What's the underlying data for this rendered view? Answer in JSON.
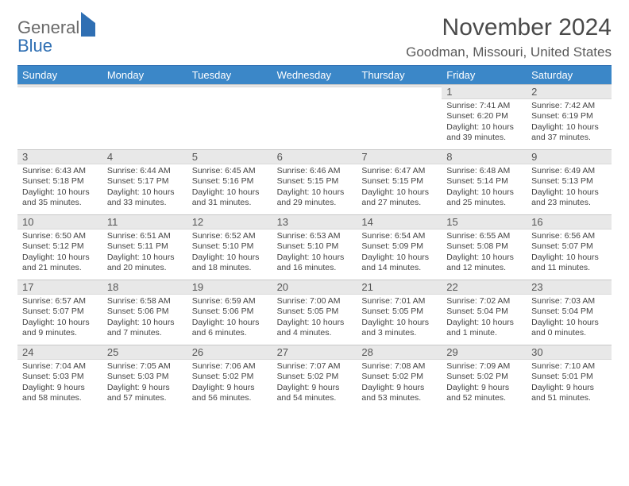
{
  "logo": {
    "top": "General",
    "bottom": "Blue"
  },
  "title": "November 2024",
  "location": "Goodman, Missouri, United States",
  "header_bg": "#3b87c8",
  "band_bg": "#e8e8e8",
  "weekdays": [
    "Sunday",
    "Monday",
    "Tuesday",
    "Wednesday",
    "Thursday",
    "Friday",
    "Saturday"
  ],
  "weeks": [
    [
      null,
      null,
      null,
      null,
      null,
      {
        "n": "1",
        "sr": "Sunrise: 7:41 AM",
        "ss": "Sunset: 6:20 PM",
        "d1": "Daylight: 10 hours",
        "d2": "and 39 minutes."
      },
      {
        "n": "2",
        "sr": "Sunrise: 7:42 AM",
        "ss": "Sunset: 6:19 PM",
        "d1": "Daylight: 10 hours",
        "d2": "and 37 minutes."
      }
    ],
    [
      {
        "n": "3",
        "sr": "Sunrise: 6:43 AM",
        "ss": "Sunset: 5:18 PM",
        "d1": "Daylight: 10 hours",
        "d2": "and 35 minutes."
      },
      {
        "n": "4",
        "sr": "Sunrise: 6:44 AM",
        "ss": "Sunset: 5:17 PM",
        "d1": "Daylight: 10 hours",
        "d2": "and 33 minutes."
      },
      {
        "n": "5",
        "sr": "Sunrise: 6:45 AM",
        "ss": "Sunset: 5:16 PM",
        "d1": "Daylight: 10 hours",
        "d2": "and 31 minutes."
      },
      {
        "n": "6",
        "sr": "Sunrise: 6:46 AM",
        "ss": "Sunset: 5:15 PM",
        "d1": "Daylight: 10 hours",
        "d2": "and 29 minutes."
      },
      {
        "n": "7",
        "sr": "Sunrise: 6:47 AM",
        "ss": "Sunset: 5:15 PM",
        "d1": "Daylight: 10 hours",
        "d2": "and 27 minutes."
      },
      {
        "n": "8",
        "sr": "Sunrise: 6:48 AM",
        "ss": "Sunset: 5:14 PM",
        "d1": "Daylight: 10 hours",
        "d2": "and 25 minutes."
      },
      {
        "n": "9",
        "sr": "Sunrise: 6:49 AM",
        "ss": "Sunset: 5:13 PM",
        "d1": "Daylight: 10 hours",
        "d2": "and 23 minutes."
      }
    ],
    [
      {
        "n": "10",
        "sr": "Sunrise: 6:50 AM",
        "ss": "Sunset: 5:12 PM",
        "d1": "Daylight: 10 hours",
        "d2": "and 21 minutes."
      },
      {
        "n": "11",
        "sr": "Sunrise: 6:51 AM",
        "ss": "Sunset: 5:11 PM",
        "d1": "Daylight: 10 hours",
        "d2": "and 20 minutes."
      },
      {
        "n": "12",
        "sr": "Sunrise: 6:52 AM",
        "ss": "Sunset: 5:10 PM",
        "d1": "Daylight: 10 hours",
        "d2": "and 18 minutes."
      },
      {
        "n": "13",
        "sr": "Sunrise: 6:53 AM",
        "ss": "Sunset: 5:10 PM",
        "d1": "Daylight: 10 hours",
        "d2": "and 16 minutes."
      },
      {
        "n": "14",
        "sr": "Sunrise: 6:54 AM",
        "ss": "Sunset: 5:09 PM",
        "d1": "Daylight: 10 hours",
        "d2": "and 14 minutes."
      },
      {
        "n": "15",
        "sr": "Sunrise: 6:55 AM",
        "ss": "Sunset: 5:08 PM",
        "d1": "Daylight: 10 hours",
        "d2": "and 12 minutes."
      },
      {
        "n": "16",
        "sr": "Sunrise: 6:56 AM",
        "ss": "Sunset: 5:07 PM",
        "d1": "Daylight: 10 hours",
        "d2": "and 11 minutes."
      }
    ],
    [
      {
        "n": "17",
        "sr": "Sunrise: 6:57 AM",
        "ss": "Sunset: 5:07 PM",
        "d1": "Daylight: 10 hours",
        "d2": "and 9 minutes."
      },
      {
        "n": "18",
        "sr": "Sunrise: 6:58 AM",
        "ss": "Sunset: 5:06 PM",
        "d1": "Daylight: 10 hours",
        "d2": "and 7 minutes."
      },
      {
        "n": "19",
        "sr": "Sunrise: 6:59 AM",
        "ss": "Sunset: 5:06 PM",
        "d1": "Daylight: 10 hours",
        "d2": "and 6 minutes."
      },
      {
        "n": "20",
        "sr": "Sunrise: 7:00 AM",
        "ss": "Sunset: 5:05 PM",
        "d1": "Daylight: 10 hours",
        "d2": "and 4 minutes."
      },
      {
        "n": "21",
        "sr": "Sunrise: 7:01 AM",
        "ss": "Sunset: 5:05 PM",
        "d1": "Daylight: 10 hours",
        "d2": "and 3 minutes."
      },
      {
        "n": "22",
        "sr": "Sunrise: 7:02 AM",
        "ss": "Sunset: 5:04 PM",
        "d1": "Daylight: 10 hours",
        "d2": "and 1 minute."
      },
      {
        "n": "23",
        "sr": "Sunrise: 7:03 AM",
        "ss": "Sunset: 5:04 PM",
        "d1": "Daylight: 10 hours",
        "d2": "and 0 minutes."
      }
    ],
    [
      {
        "n": "24",
        "sr": "Sunrise: 7:04 AM",
        "ss": "Sunset: 5:03 PM",
        "d1": "Daylight: 9 hours",
        "d2": "and 58 minutes."
      },
      {
        "n": "25",
        "sr": "Sunrise: 7:05 AM",
        "ss": "Sunset: 5:03 PM",
        "d1": "Daylight: 9 hours",
        "d2": "and 57 minutes."
      },
      {
        "n": "26",
        "sr": "Sunrise: 7:06 AM",
        "ss": "Sunset: 5:02 PM",
        "d1": "Daylight: 9 hours",
        "d2": "and 56 minutes."
      },
      {
        "n": "27",
        "sr": "Sunrise: 7:07 AM",
        "ss": "Sunset: 5:02 PM",
        "d1": "Daylight: 9 hours",
        "d2": "and 54 minutes."
      },
      {
        "n": "28",
        "sr": "Sunrise: 7:08 AM",
        "ss": "Sunset: 5:02 PM",
        "d1": "Daylight: 9 hours",
        "d2": "and 53 minutes."
      },
      {
        "n": "29",
        "sr": "Sunrise: 7:09 AM",
        "ss": "Sunset: 5:02 PM",
        "d1": "Daylight: 9 hours",
        "d2": "and 52 minutes."
      },
      {
        "n": "30",
        "sr": "Sunrise: 7:10 AM",
        "ss": "Sunset: 5:01 PM",
        "d1": "Daylight: 9 hours",
        "d2": "and 51 minutes."
      }
    ]
  ]
}
